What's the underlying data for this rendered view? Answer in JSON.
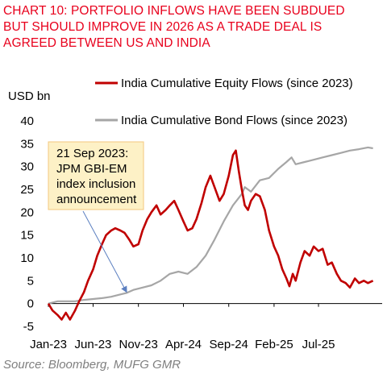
{
  "title_lines": [
    "CHART 10: PORTFOLIO INFLOWS HAVE BEEN SUBDUED",
    "BUT SHOULD IMPROVE IN 2026 AS A TRADE DEAL IS",
    "AGREED BETWEEN US AND INDIA"
  ],
  "source": "Source: Bloomberg, MUFG GMR",
  "colors": {
    "title": "#e8001c",
    "equity": "#c00000",
    "bond": "#a6a6a6",
    "annotation_bg": "#fdf1c6",
    "annotation_border": "#f3c77d",
    "arrow": "#5b7fc0"
  },
  "chart_data": {
    "type": "line",
    "ylabel": "USD bn",
    "ylim": [
      -5,
      40
    ],
    "yticks": [
      -5,
      0,
      5,
      10,
      15,
      20,
      25,
      30,
      35,
      40
    ],
    "ytick_labels": [
      "-5",
      "0",
      "5",
      "10",
      "15",
      "20",
      "25",
      "30",
      "35",
      "40"
    ],
    "xlim": [
      "2023-01",
      "2026-02"
    ],
    "xticks": [
      "2023-01",
      "2023-06",
      "2023-11",
      "2024-04",
      "2024-09",
      "2025-02",
      "2025-07"
    ],
    "xtick_labels": [
      "Jan-23",
      "Jun-23",
      "Nov-23",
      "Apr-24",
      "Sep-24",
      "Feb-25",
      "Jul-25"
    ],
    "legend": [
      "India Cumulative Equity Flows (since 2023)",
      "India Cumulative Bond Flows (since 2023)"
    ],
    "legend_position": "top",
    "series": [
      {
        "name": "India Cumulative Equity Flows (since 2023)",
        "color": "#c00000",
        "points": [
          [
            "2023-01-01",
            0
          ],
          [
            "2023-01-15",
            -1.5
          ],
          [
            "2023-02-01",
            -2.5
          ],
          [
            "2023-02-15",
            -3.5
          ],
          [
            "2023-03-01",
            -2.0
          ],
          [
            "2023-03-15",
            -3.5
          ],
          [
            "2023-04-01",
            -1.5
          ],
          [
            "2023-04-15",
            0.5
          ],
          [
            "2023-05-01",
            2.5
          ],
          [
            "2023-05-15",
            5.0
          ],
          [
            "2023-06-01",
            7.5
          ],
          [
            "2023-06-15",
            10.5
          ],
          [
            "2023-07-01",
            13.0
          ],
          [
            "2023-07-15",
            15.0
          ],
          [
            "2023-08-01",
            16.0
          ],
          [
            "2023-08-15",
            16.5
          ],
          [
            "2023-09-01",
            16.0
          ],
          [
            "2023-09-15",
            15.5
          ],
          [
            "2023-10-01",
            14.0
          ],
          [
            "2023-10-15",
            12.5
          ],
          [
            "2023-11-01",
            13.0
          ],
          [
            "2023-11-15",
            16.0
          ],
          [
            "2023-12-01",
            18.5
          ],
          [
            "2023-12-15",
            20.0
          ],
          [
            "2024-01-01",
            21.5
          ],
          [
            "2024-01-15",
            19.5
          ],
          [
            "2024-02-01",
            20.5
          ],
          [
            "2024-02-15",
            21.5
          ],
          [
            "2024-03-01",
            22.5
          ],
          [
            "2024-03-15",
            20.5
          ],
          [
            "2024-04-01",
            18.0
          ],
          [
            "2024-04-15",
            16.0
          ],
          [
            "2024-05-01",
            16.5
          ],
          [
            "2024-05-15",
            18.5
          ],
          [
            "2024-06-01",
            22.0
          ],
          [
            "2024-06-15",
            25.5
          ],
          [
            "2024-07-01",
            28.0
          ],
          [
            "2024-07-15",
            25.5
          ],
          [
            "2024-08-01",
            22.5
          ],
          [
            "2024-08-15",
            24.0
          ],
          [
            "2024-09-01",
            28.0
          ],
          [
            "2024-09-15",
            32.5
          ],
          [
            "2024-09-25",
            33.5
          ],
          [
            "2024-10-05",
            29.0
          ],
          [
            "2024-10-15",
            25.0
          ],
          [
            "2024-10-25",
            21.5
          ],
          [
            "2024-11-05",
            20.5
          ],
          [
            "2024-11-15",
            22.5
          ],
          [
            "2024-12-01",
            24.0
          ],
          [
            "2024-12-15",
            23.5
          ],
          [
            "2025-01-01",
            20.5
          ],
          [
            "2025-01-15",
            16.0
          ],
          [
            "2025-02-01",
            12.5
          ],
          [
            "2025-02-15",
            10.5
          ],
          [
            "2025-03-01",
            7.5
          ],
          [
            "2025-03-15",
            5.5
          ],
          [
            "2025-03-25",
            3.8
          ],
          [
            "2025-04-05",
            6.5
          ],
          [
            "2025-04-15",
            5.0
          ],
          [
            "2025-05-01",
            9.0
          ],
          [
            "2025-05-15",
            11.5
          ],
          [
            "2025-06-01",
            10.5
          ],
          [
            "2025-06-15",
            12.5
          ],
          [
            "2025-07-01",
            11.5
          ],
          [
            "2025-07-15",
            12.0
          ],
          [
            "2025-08-01",
            8.5
          ],
          [
            "2025-08-15",
            9.0
          ],
          [
            "2025-09-01",
            6.5
          ],
          [
            "2025-09-15",
            5.0
          ],
          [
            "2025-10-01",
            4.5
          ],
          [
            "2025-10-15",
            3.5
          ],
          [
            "2025-11-01",
            5.5
          ],
          [
            "2025-11-15",
            4.5
          ],
          [
            "2025-12-01",
            5.0
          ],
          [
            "2025-12-15",
            4.5
          ],
          [
            "2026-01-01",
            5.0
          ]
        ]
      },
      {
        "name": "India Cumulative Bond Flows (since 2023)",
        "color": "#a6a6a6",
        "points": [
          [
            "2023-01-01",
            0
          ],
          [
            "2023-02-01",
            0.5
          ],
          [
            "2023-03-01",
            0.5
          ],
          [
            "2023-04-01",
            0.5
          ],
          [
            "2023-05-01",
            0.8
          ],
          [
            "2023-06-01",
            1.0
          ],
          [
            "2023-07-01",
            1.2
          ],
          [
            "2023-08-01",
            1.5
          ],
          [
            "2023-09-01",
            2.0
          ],
          [
            "2023-09-21",
            2.3
          ],
          [
            "2023-10-15",
            3.0
          ],
          [
            "2023-11-15",
            3.5
          ],
          [
            "2023-12-15",
            4.0
          ],
          [
            "2024-01-15",
            5.0
          ],
          [
            "2024-02-15",
            6.5
          ],
          [
            "2024-03-15",
            7.0
          ],
          [
            "2024-04-15",
            6.5
          ],
          [
            "2024-05-15",
            8.0
          ],
          [
            "2024-06-15",
            10.5
          ],
          [
            "2024-07-15",
            14.0
          ],
          [
            "2024-08-15",
            18.0
          ],
          [
            "2024-09-15",
            21.5
          ],
          [
            "2024-10-15",
            24.0
          ],
          [
            "2024-10-25",
            25.5
          ],
          [
            "2024-11-15",
            24.5
          ],
          [
            "2024-12-15",
            27.0
          ],
          [
            "2025-01-15",
            27.5
          ],
          [
            "2025-02-15",
            29.5
          ],
          [
            "2025-03-15",
            31.0
          ],
          [
            "2025-04-01",
            32.0
          ],
          [
            "2025-04-15",
            30.5
          ],
          [
            "2025-05-15",
            31.0
          ],
          [
            "2025-06-15",
            31.5
          ],
          [
            "2025-07-15",
            32.0
          ],
          [
            "2025-08-15",
            32.5
          ],
          [
            "2025-09-15",
            33.0
          ],
          [
            "2025-10-15",
            33.5
          ],
          [
            "2025-11-15",
            33.8
          ],
          [
            "2025-12-15",
            34.2
          ],
          [
            "2026-01-01",
            34.0
          ]
        ]
      }
    ],
    "annotation": {
      "lines": [
        "21 Sep 2023:",
        "JPM GBI-EM",
        "index inclusion",
        "announcement"
      ],
      "arrow_to": [
        "2023-09-21",
        2.3
      ]
    }
  }
}
